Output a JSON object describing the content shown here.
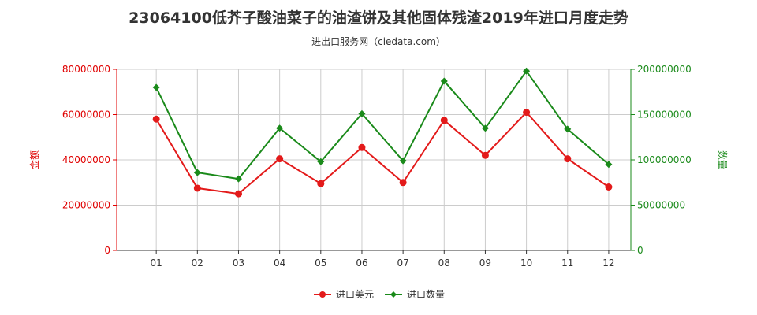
{
  "title": "23064100低芥子酸油菜子的油渣饼及其他固体残渣2019年进口月度走势",
  "subtitle": "进出口服务网（ciedata.com）",
  "colors": {
    "left_axis": "#e00000",
    "right_axis": "#1a8a1a",
    "grid": "#cccccc"
  },
  "chart_data": {
    "type": "line",
    "categories": [
      "01",
      "02",
      "03",
      "04",
      "05",
      "06",
      "07",
      "08",
      "09",
      "10",
      "11",
      "12"
    ],
    "series": [
      {
        "name": "进口美元",
        "axis": "left",
        "color": "#e31a1a",
        "values": [
          58000000,
          27500000,
          25000000,
          40500000,
          29500000,
          45500000,
          30000000,
          57500000,
          42000000,
          61000000,
          40500000,
          28000000
        ]
      },
      {
        "name": "进口数量",
        "axis": "right",
        "color": "#1a8a1a",
        "values": [
          180000000,
          86000000,
          79000000,
          135000000,
          98000000,
          151000000,
          99000000,
          187000000,
          135000000,
          198000000,
          134000000,
          95000000
        ]
      }
    ],
    "y_left": {
      "label": "金额",
      "ticks": [
        0,
        20000000,
        40000000,
        60000000,
        80000000
      ],
      "range": [
        0,
        80000000
      ]
    },
    "y_right": {
      "label": "数量",
      "ticks": [
        0,
        50000000,
        100000000,
        150000000,
        200000000
      ],
      "range": [
        0,
        200000000
      ]
    },
    "grid": true,
    "legend_position": "bottom-center"
  }
}
